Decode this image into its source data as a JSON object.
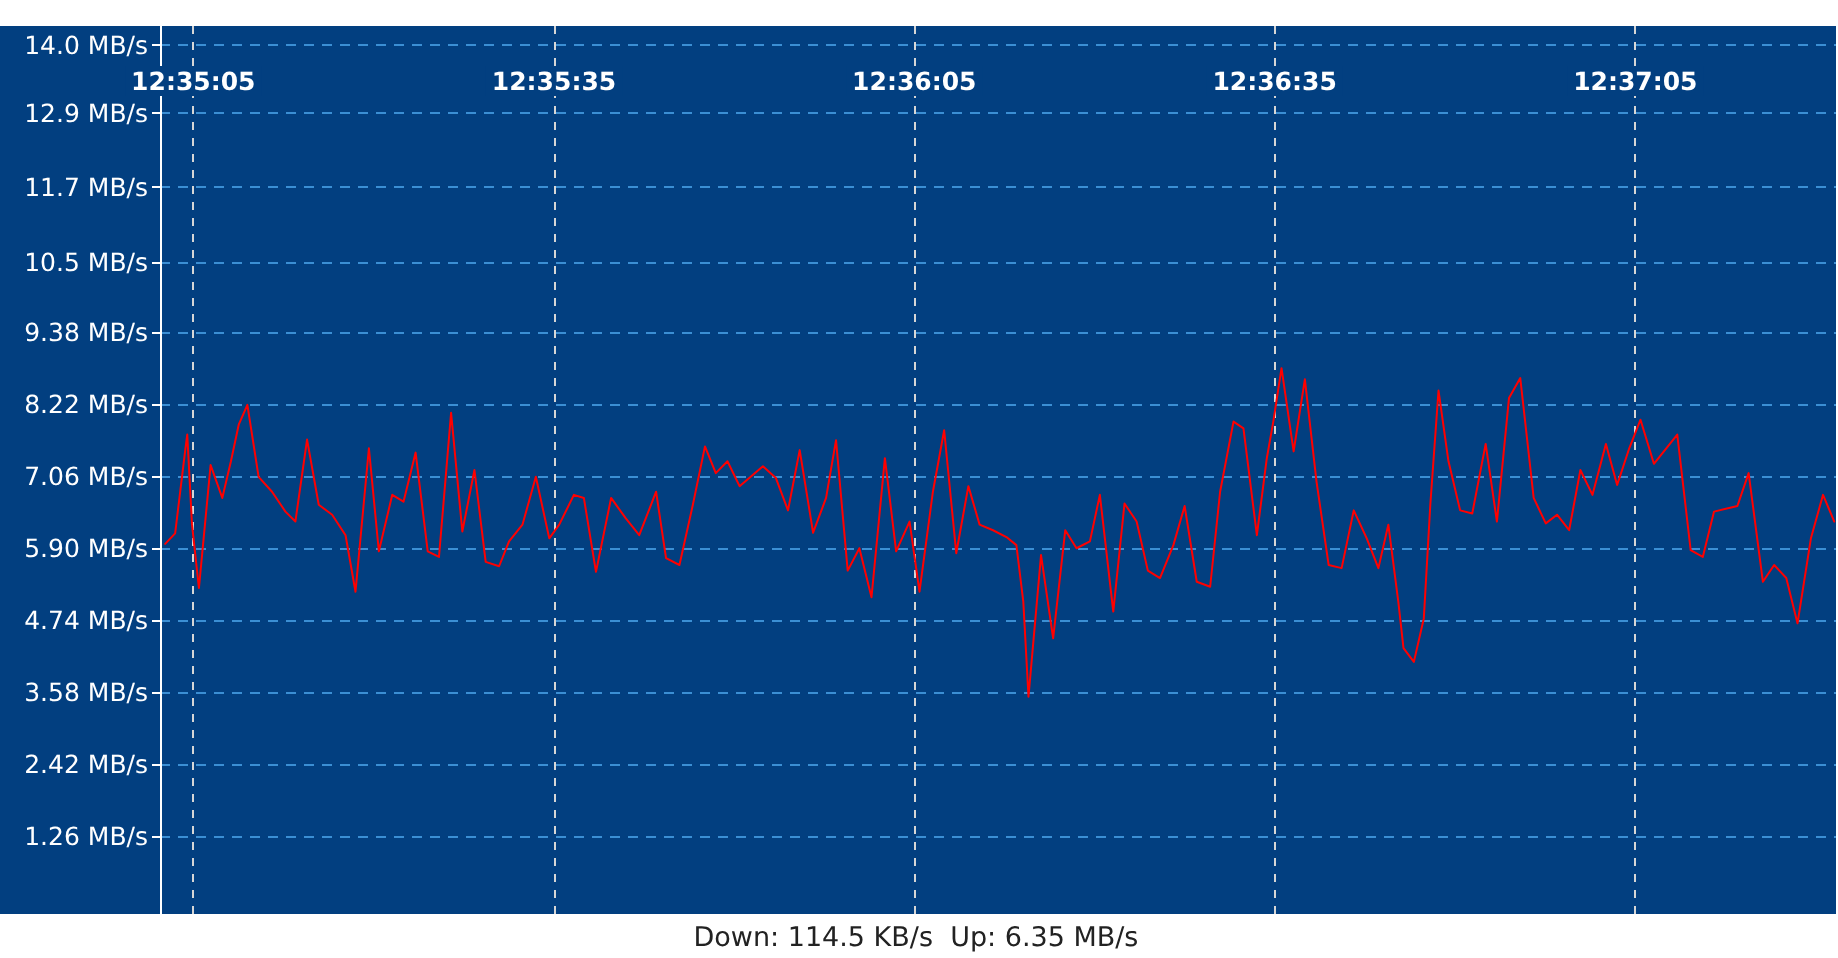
{
  "chart_data": {
    "type": "line",
    "x": [
      12.58407,
      12.5843,
      12.58453,
      12.58458,
      12.58469,
      12.58485,
      12.58512,
      12.58539,
      12.58559,
      12.58577,
      12.58597,
      12.58623,
      12.58654,
      12.58685,
      12.58708,
      12.58735,
      12.58762,
      12.58793,
      12.58824,
      12.58847,
      12.58878,
      12.58901,
      12.58932,
      12.58958,
      12.58986,
      12.59014,
      12.5904,
      12.59068,
      12.59094,
      12.59122,
      12.59148,
      12.59179,
      12.59202,
      12.59233,
      12.59264,
      12.59295,
      12.59318,
      12.59352,
      12.59375,
      12.59403,
      12.59438,
      12.59472,
      12.59503,
      12.59542,
      12.59565,
      12.59596,
      12.59627,
      12.59655,
      12.5968,
      12.59707,
      12.59735,
      12.59789,
      12.59819,
      12.59847,
      12.59874,
      12.59905,
      12.59935,
      12.59958,
      12.59985,
      12.60012,
      12.6004,
      12.60071,
      12.60097,
      12.60128,
      12.60151,
      12.60182,
      12.60208,
      12.60236,
      12.60264,
      12.6029,
      12.60321,
      12.60352,
      12.60375,
      12.60391,
      12.60403,
      12.60432,
      12.6046,
      12.60488,
      12.60514,
      12.60545,
      12.60568,
      12.60599,
      12.60625,
      12.60653,
      12.60679,
      12.60707,
      12.60738,
      12.60764,
      12.60792,
      12.60823,
      12.60846,
      12.60877,
      12.609,
      12.60931,
      12.60954,
      12.60969,
      12.60988,
      12.61016,
      12.61042,
      12.61069,
      12.61097,
      12.61127,
      12.61155,
      12.61185,
      12.61212,
      12.61235,
      12.61258,
      12.6127,
      12.61294,
      12.61317,
      12.61332,
      12.61351,
      12.61374,
      12.61401,
      12.61429,
      12.6146,
      12.61486,
      12.61514,
      12.6154,
      12.61571,
      12.61599,
      12.61625,
      12.61653,
      12.61679,
      12.61707,
      12.61738,
      12.61764,
      12.61792,
      12.61818,
      12.61849,
      12.61903,
      12.61934,
      12.61962,
      12.61988,
      12.62042,
      12.62068,
      12.62101,
      12.62127,
      12.62155,
      12.62181,
      12.62212,
      12.6224,
      12.62266
    ],
    "series": [
      {
        "color": "#ff0000",
        "values": [
          5.96,
          6.13,
          7.45,
          7.72,
          6.27,
          5.25,
          7.23,
          6.7,
          7.29,
          7.88,
          8.2,
          7.04,
          6.8,
          6.48,
          6.32,
          7.64,
          6.59,
          6.43,
          6.1,
          5.19,
          7.5,
          5.84,
          6.75,
          6.64,
          7.43,
          5.84,
          5.75,
          8.07,
          6.16,
          7.15,
          5.67,
          5.6,
          6.0,
          6.27,
          7.04,
          6.05,
          6.27,
          6.75,
          6.7,
          5.51,
          6.7,
          6.37,
          6.1,
          6.8,
          5.73,
          5.62,
          6.59,
          7.53,
          7.1,
          7.29,
          6.89,
          7.21,
          7.02,
          6.5,
          7.47,
          6.14,
          6.7,
          7.63,
          5.53,
          5.89,
          5.1,
          7.34,
          5.84,
          6.32,
          5.19,
          6.8,
          7.79,
          5.81,
          6.89,
          6.27,
          6.18,
          6.07,
          5.94,
          5.03,
          3.5,
          5.78,
          4.44,
          6.18,
          5.89,
          6.0,
          6.75,
          4.87,
          6.61,
          6.32,
          5.53,
          5.41,
          5.94,
          6.57,
          5.35,
          5.27,
          6.8,
          7.93,
          7.82,
          6.1,
          7.34,
          7.93,
          8.79,
          7.45,
          8.61,
          6.96,
          5.62,
          5.57,
          6.5,
          6.05,
          5.57,
          6.27,
          5.03,
          4.28,
          4.06,
          4.76,
          6.59,
          8.43,
          7.29,
          6.5,
          6.45,
          7.57,
          6.32,
          8.31,
          8.63,
          6.7,
          6.29,
          6.43,
          6.18,
          7.15,
          6.75,
          7.57,
          6.91,
          7.5,
          7.96,
          7.25,
          7.72,
          5.86,
          5.75,
          6.48,
          6.57,
          7.1,
          5.35,
          5.62,
          5.41,
          4.68,
          6.05,
          6.75,
          6.32
        ]
      }
    ],
    "xlim": [
      12.58395,
      12.6227
    ],
    "xticks": [
      {
        "value": 12.58472,
        "label": "12:35:05"
      },
      {
        "value": 12.59306,
        "label": "12:35:35"
      },
      {
        "value": 12.60139,
        "label": "12:36:05"
      },
      {
        "value": 12.60972,
        "label": "12:36:35"
      },
      {
        "value": 12.61806,
        "label": "12:37:05"
      }
    ],
    "ylim": [
      0,
      14.3
    ],
    "yticks": [
      {
        "value": 1.26,
        "label": "1.26 MB/s"
      },
      {
        "value": 2.42,
        "label": "2.42 MB/s"
      },
      {
        "value": 3.58,
        "label": "3.58 MB/s"
      },
      {
        "value": 4.74,
        "label": "4.74 MB/s"
      },
      {
        "value": 5.9,
        "label": "5.90 MB/s"
      },
      {
        "value": 7.06,
        "label": "7.06 MB/s"
      },
      {
        "value": 8.22,
        "label": "8.22 MB/s"
      },
      {
        "value": 9.38,
        "label": "9.38 MB/s"
      },
      {
        "value": 10.5,
        "label": "10.5 MB/s"
      },
      {
        "value": 11.7,
        "label": "11.7 MB/s"
      },
      {
        "value": 12.9,
        "label": "12.9 MB/s"
      },
      {
        "value": 14.0,
        "label": "14.0 MB/s"
      }
    ],
    "grid": true,
    "marker": "none",
    "line_style": "solid",
    "annotations": [
      "Down: 114.5 KB/s  Up: 6.35 MB/s"
    ]
  }
}
